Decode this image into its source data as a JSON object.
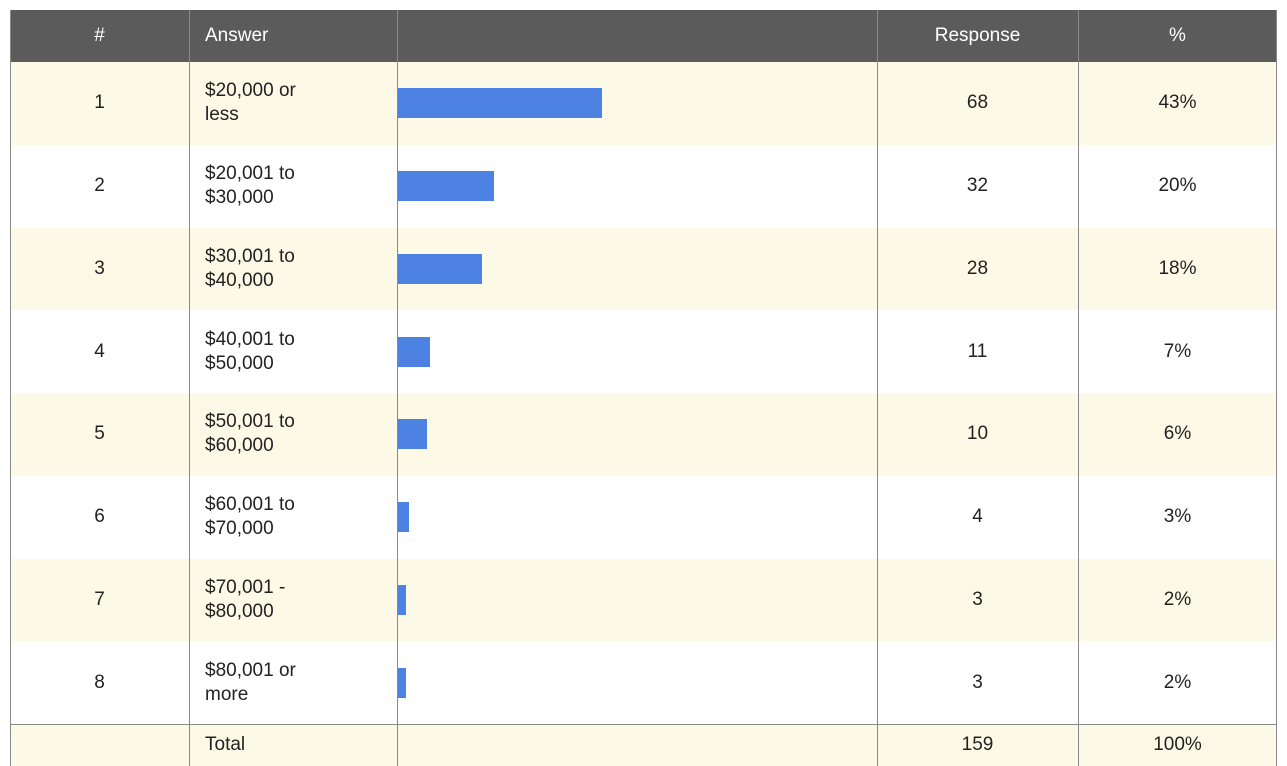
{
  "table": {
    "header": {
      "number": "#",
      "answer": "Answer",
      "response": "Response",
      "percent": "%"
    },
    "rows": [
      {
        "number": 1,
        "answer": "$20,000 or less",
        "response": 68,
        "percent": "43%"
      },
      {
        "number": 2,
        "answer": "$20,001 to $30,000",
        "response": 32,
        "percent": "20%"
      },
      {
        "number": 3,
        "answer": "$30,001 to $40,000",
        "response": 28,
        "percent": "18%"
      },
      {
        "number": 4,
        "answer": "$40,001 to $50,000",
        "response": 11,
        "percent": "7%"
      },
      {
        "number": 5,
        "answer": "$50,001 to $60,000",
        "response": 10,
        "percent": "6%"
      },
      {
        "number": 6,
        "answer": "$60,001 to $70,000",
        "response": 4,
        "percent": "3%"
      },
      {
        "number": 7,
        "answer": "$70,001 - $80,000",
        "response": 3,
        "percent": "2%"
      },
      {
        "number": 8,
        "answer": "$80,001 or more",
        "response": 3,
        "percent": "2%"
      }
    ],
    "total": {
      "answer": "Total",
      "response": 159,
      "percent": "100%"
    }
  }
}
